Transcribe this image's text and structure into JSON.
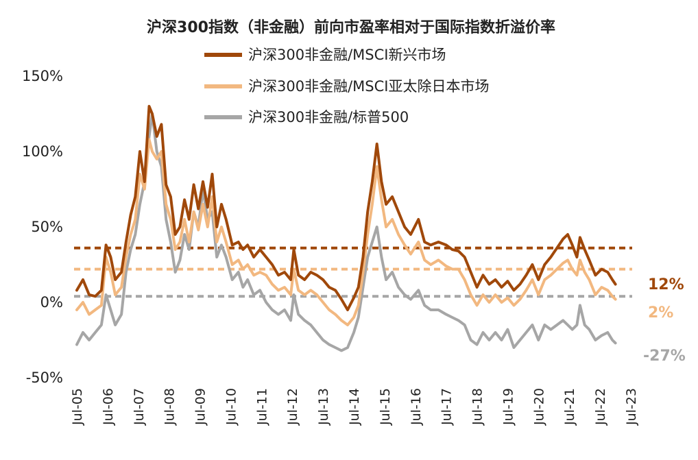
{
  "chart_data": {
    "type": "line",
    "title": "沪深300指数（非金融）前向市盈率相对于国际指数折溢价率",
    "x_tick_labels": [
      "Jul-05",
      "Jul-06",
      "Jul-07",
      "Jul-08",
      "Jul-09",
      "Jul-10",
      "Jul-11",
      "Jul-12",
      "Jul-13",
      "Jul-14",
      "Jul-15",
      "Jul-16",
      "Jul-17",
      "Jul-18",
      "Jul-19",
      "Jul-20",
      "Jul-21",
      "Jul-22",
      "Jul-23"
    ],
    "y_tick_labels": [
      "150%",
      "100%",
      "50%",
      "0%",
      "-50%"
    ],
    "ylim": [
      -50,
      150
    ],
    "y_unit": "%",
    "grid": false,
    "legend_position": "top-center",
    "series": [
      {
        "name": "沪深300非金融/MSCI新兴市场",
        "color": "#A0480A",
        "end_label": "12%",
        "average_line": 36,
        "points": [
          [
            2005.5,
            8
          ],
          [
            2005.7,
            15
          ],
          [
            2005.9,
            5
          ],
          [
            2006.1,
            4
          ],
          [
            2006.3,
            8
          ],
          [
            2006.45,
            38
          ],
          [
            2006.6,
            30
          ],
          [
            2006.75,
            15
          ],
          [
            2006.95,
            20
          ],
          [
            2007.1,
            40
          ],
          [
            2007.25,
            58
          ],
          [
            2007.4,
            70
          ],
          [
            2007.55,
            100
          ],
          [
            2007.7,
            80
          ],
          [
            2007.85,
            130
          ],
          [
            2007.95,
            125
          ],
          [
            2008.1,
            110
          ],
          [
            2008.25,
            118
          ],
          [
            2008.4,
            78
          ],
          [
            2008.55,
            70
          ],
          [
            2008.7,
            45
          ],
          [
            2008.85,
            50
          ],
          [
            2009.0,
            68
          ],
          [
            2009.15,
            55
          ],
          [
            2009.3,
            78
          ],
          [
            2009.45,
            62
          ],
          [
            2009.6,
            80
          ],
          [
            2009.75,
            63
          ],
          [
            2009.9,
            85
          ],
          [
            2010.05,
            50
          ],
          [
            2010.2,
            65
          ],
          [
            2010.35,
            55
          ],
          [
            2010.55,
            38
          ],
          [
            2010.75,
            40
          ],
          [
            2010.9,
            35
          ],
          [
            2011.05,
            38
          ],
          [
            2011.25,
            30
          ],
          [
            2011.45,
            35
          ],
          [
            2011.65,
            30
          ],
          [
            2011.85,
            25
          ],
          [
            2012.05,
            18
          ],
          [
            2012.25,
            20
          ],
          [
            2012.45,
            15
          ],
          [
            2012.55,
            35
          ],
          [
            2012.7,
            18
          ],
          [
            2012.9,
            15
          ],
          [
            2013.1,
            20
          ],
          [
            2013.3,
            18
          ],
          [
            2013.5,
            15
          ],
          [
            2013.7,
            10
          ],
          [
            2013.9,
            8
          ],
          [
            2014.1,
            2
          ],
          [
            2014.3,
            -5
          ],
          [
            2014.5,
            3
          ],
          [
            2014.65,
            10
          ],
          [
            2014.8,
            30
          ],
          [
            2014.95,
            60
          ],
          [
            2015.1,
            80
          ],
          [
            2015.25,
            105
          ],
          [
            2015.4,
            80
          ],
          [
            2015.55,
            65
          ],
          [
            2015.75,
            70
          ],
          [
            2015.95,
            60
          ],
          [
            2016.15,
            50
          ],
          [
            2016.35,
            45
          ],
          [
            2016.6,
            55
          ],
          [
            2016.8,
            40
          ],
          [
            2017.0,
            38
          ],
          [
            2017.25,
            40
          ],
          [
            2017.5,
            38
          ],
          [
            2017.7,
            35
          ],
          [
            2017.9,
            34
          ],
          [
            2018.1,
            30
          ],
          [
            2018.3,
            20
          ],
          [
            2018.5,
            10
          ],
          [
            2018.7,
            18
          ],
          [
            2018.9,
            12
          ],
          [
            2019.1,
            15
          ],
          [
            2019.3,
            10
          ],
          [
            2019.5,
            14
          ],
          [
            2019.7,
            8
          ],
          [
            2019.9,
            12
          ],
          [
            2020.1,
            18
          ],
          [
            2020.3,
            25
          ],
          [
            2020.5,
            15
          ],
          [
            2020.7,
            25
          ],
          [
            2020.9,
            30
          ],
          [
            2021.1,
            36
          ],
          [
            2021.3,
            42
          ],
          [
            2021.45,
            45
          ],
          [
            2021.6,
            38
          ],
          [
            2021.75,
            30
          ],
          [
            2021.85,
            43
          ],
          [
            2022.0,
            35
          ],
          [
            2022.15,
            28
          ],
          [
            2022.35,
            18
          ],
          [
            2022.55,
            22
          ],
          [
            2022.75,
            20
          ],
          [
            2022.9,
            15
          ],
          [
            2023.0,
            12
          ]
        ]
      },
      {
        "name": "沪深300非金融/MSCI亚太除日本市场",
        "color": "#F2B880",
        "end_label": "2%",
        "average_line": 22,
        "points": [
          [
            2005.5,
            -5
          ],
          [
            2005.7,
            0
          ],
          [
            2005.9,
            -8
          ],
          [
            2006.1,
            -5
          ],
          [
            2006.3,
            -2
          ],
          [
            2006.45,
            30
          ],
          [
            2006.6,
            20
          ],
          [
            2006.75,
            5
          ],
          [
            2006.95,
            10
          ],
          [
            2007.1,
            30
          ],
          [
            2007.25,
            45
          ],
          [
            2007.4,
            55
          ],
          [
            2007.55,
            85
          ],
          [
            2007.7,
            75
          ],
          [
            2007.85,
            108
          ],
          [
            2007.95,
            100
          ],
          [
            2008.1,
            95
          ],
          [
            2008.25,
            100
          ],
          [
            2008.4,
            65
          ],
          [
            2008.55,
            55
          ],
          [
            2008.7,
            35
          ],
          [
            2008.85,
            40
          ],
          [
            2009.0,
            55
          ],
          [
            2009.15,
            40
          ],
          [
            2009.3,
            60
          ],
          [
            2009.45,
            48
          ],
          [
            2009.6,
            65
          ],
          [
            2009.75,
            50
          ],
          [
            2009.9,
            70
          ],
          [
            2010.05,
            40
          ],
          [
            2010.2,
            50
          ],
          [
            2010.35,
            40
          ],
          [
            2010.55,
            25
          ],
          [
            2010.75,
            28
          ],
          [
            2010.9,
            22
          ],
          [
            2011.05,
            25
          ],
          [
            2011.25,
            18
          ],
          [
            2011.45,
            20
          ],
          [
            2011.65,
            18
          ],
          [
            2011.85,
            12
          ],
          [
            2012.05,
            8
          ],
          [
            2012.25,
            10
          ],
          [
            2012.45,
            5
          ],
          [
            2012.55,
            22
          ],
          [
            2012.7,
            8
          ],
          [
            2012.9,
            5
          ],
          [
            2013.1,
            8
          ],
          [
            2013.3,
            5
          ],
          [
            2013.5,
            0
          ],
          [
            2013.7,
            -5
          ],
          [
            2013.9,
            -8
          ],
          [
            2014.1,
            -12
          ],
          [
            2014.3,
            -15
          ],
          [
            2014.5,
            -10
          ],
          [
            2014.65,
            -2
          ],
          [
            2014.8,
            20
          ],
          [
            2014.95,
            45
          ],
          [
            2015.1,
            65
          ],
          [
            2015.25,
            90
          ],
          [
            2015.4,
            68
          ],
          [
            2015.55,
            50
          ],
          [
            2015.75,
            55
          ],
          [
            2015.95,
            45
          ],
          [
            2016.15,
            38
          ],
          [
            2016.35,
            32
          ],
          [
            2016.6,
            40
          ],
          [
            2016.8,
            28
          ],
          [
            2017.0,
            25
          ],
          [
            2017.25,
            28
          ],
          [
            2017.5,
            24
          ],
          [
            2017.7,
            22
          ],
          [
            2017.9,
            22
          ],
          [
            2018.1,
            15
          ],
          [
            2018.3,
            5
          ],
          [
            2018.5,
            -2
          ],
          [
            2018.7,
            5
          ],
          [
            2018.9,
            0
          ],
          [
            2019.1,
            5
          ],
          [
            2019.3,
            0
          ],
          [
            2019.5,
            3
          ],
          [
            2019.7,
            -2
          ],
          [
            2019.9,
            2
          ],
          [
            2020.1,
            8
          ],
          [
            2020.3,
            15
          ],
          [
            2020.5,
            5
          ],
          [
            2020.7,
            15
          ],
          [
            2020.9,
            18
          ],
          [
            2021.1,
            22
          ],
          [
            2021.3,
            26
          ],
          [
            2021.45,
            28
          ],
          [
            2021.6,
            22
          ],
          [
            2021.75,
            18
          ],
          [
            2021.85,
            28
          ],
          [
            2022.0,
            20
          ],
          [
            2022.15,
            15
          ],
          [
            2022.35,
            5
          ],
          [
            2022.55,
            10
          ],
          [
            2022.75,
            8
          ],
          [
            2022.9,
            4
          ],
          [
            2023.0,
            2
          ]
        ]
      },
      {
        "name": "沪深300非金融/标普500",
        "color": "#A6A6A6",
        "end_label": "-27%",
        "average_line": 4,
        "points": [
          [
            2005.5,
            -28
          ],
          [
            2005.7,
            -20
          ],
          [
            2005.9,
            -25
          ],
          [
            2006.1,
            -20
          ],
          [
            2006.3,
            -15
          ],
          [
            2006.45,
            5
          ],
          [
            2006.6,
            -5
          ],
          [
            2006.75,
            -15
          ],
          [
            2006.95,
            -8
          ],
          [
            2007.1,
            20
          ],
          [
            2007.25,
            35
          ],
          [
            2007.4,
            45
          ],
          [
            2007.55,
            65
          ],
          [
            2007.7,
            80
          ],
          [
            2007.85,
            110
          ],
          [
            2007.95,
            125
          ],
          [
            2008.1,
            100
          ],
          [
            2008.25,
            90
          ],
          [
            2008.4,
            55
          ],
          [
            2008.55,
            40
          ],
          [
            2008.7,
            20
          ],
          [
            2008.85,
            28
          ],
          [
            2009.0,
            45
          ],
          [
            2009.15,
            35
          ],
          [
            2009.3,
            60
          ],
          [
            2009.45,
            50
          ],
          [
            2009.6,
            75
          ],
          [
            2009.75,
            55
          ],
          [
            2009.9,
            60
          ],
          [
            2010.05,
            30
          ],
          [
            2010.2,
            38
          ],
          [
            2010.35,
            30
          ],
          [
            2010.55,
            15
          ],
          [
            2010.75,
            20
          ],
          [
            2010.9,
            10
          ],
          [
            2011.05,
            15
          ],
          [
            2011.25,
            5
          ],
          [
            2011.45,
            8
          ],
          [
            2011.65,
            0
          ],
          [
            2011.85,
            -5
          ],
          [
            2012.05,
            -8
          ],
          [
            2012.25,
            -5
          ],
          [
            2012.45,
            -12
          ],
          [
            2012.55,
            5
          ],
          [
            2012.7,
            -8
          ],
          [
            2012.9,
            -12
          ],
          [
            2013.1,
            -15
          ],
          [
            2013.3,
            -20
          ],
          [
            2013.5,
            -25
          ],
          [
            2013.7,
            -28
          ],
          [
            2013.9,
            -30
          ],
          [
            2014.1,
            -32
          ],
          [
            2014.3,
            -30
          ],
          [
            2014.5,
            -20
          ],
          [
            2014.65,
            -10
          ],
          [
            2014.8,
            10
          ],
          [
            2014.95,
            30
          ],
          [
            2015.1,
            40
          ],
          [
            2015.25,
            50
          ],
          [
            2015.4,
            30
          ],
          [
            2015.55,
            15
          ],
          [
            2015.75,
            20
          ],
          [
            2015.95,
            10
          ],
          [
            2016.15,
            5
          ],
          [
            2016.35,
            2
          ],
          [
            2016.6,
            8
          ],
          [
            2016.8,
            -2
          ],
          [
            2017.0,
            -5
          ],
          [
            2017.25,
            -5
          ],
          [
            2017.5,
            -8
          ],
          [
            2017.7,
            -10
          ],
          [
            2017.9,
            -12
          ],
          [
            2018.1,
            -15
          ],
          [
            2018.3,
            -25
          ],
          [
            2018.5,
            -28
          ],
          [
            2018.7,
            -20
          ],
          [
            2018.9,
            -25
          ],
          [
            2019.1,
            -20
          ],
          [
            2019.3,
            -25
          ],
          [
            2019.5,
            -18
          ],
          [
            2019.7,
            -30
          ],
          [
            2019.9,
            -25
          ],
          [
            2020.1,
            -20
          ],
          [
            2020.3,
            -15
          ],
          [
            2020.5,
            -25
          ],
          [
            2020.7,
            -15
          ],
          [
            2020.9,
            -18
          ],
          [
            2021.1,
            -15
          ],
          [
            2021.3,
            -12
          ],
          [
            2021.45,
            -15
          ],
          [
            2021.6,
            -18
          ],
          [
            2021.75,
            -15
          ],
          [
            2021.85,
            -2
          ],
          [
            2022.0,
            -15
          ],
          [
            2022.15,
            -18
          ],
          [
            2022.35,
            -25
          ],
          [
            2022.55,
            -22
          ],
          [
            2022.75,
            -20
          ],
          [
            2022.9,
            -25
          ],
          [
            2023.0,
            -27
          ]
        ]
      }
    ]
  }
}
